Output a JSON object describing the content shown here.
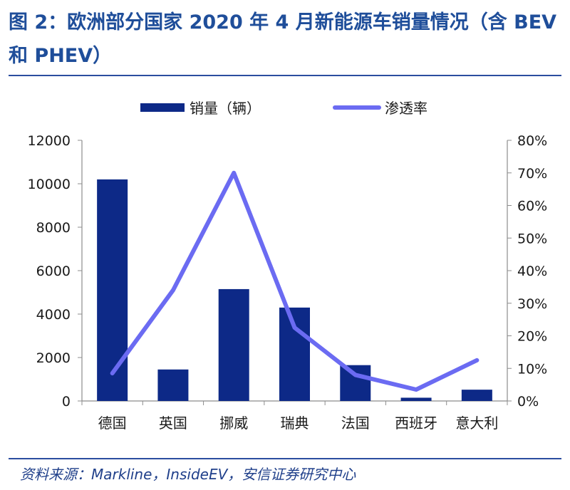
{
  "figure": {
    "title": "图 2：欧洲部分国家 2020 年 4 月新能源车销量情况（含 BEV 和 PHEV）",
    "source": "资料来源：Markline，InsideEV，安信证券研究中心"
  },
  "chart_data": {
    "type": "bar+line",
    "categories": [
      "德国",
      "英国",
      "挪威",
      "瑞典",
      "法国",
      "西班牙",
      "意大利"
    ],
    "series": [
      {
        "name": "销量（辆）",
        "type": "bar",
        "axis": "left",
        "color": "#0d2987",
        "values": [
          10200,
          1450,
          5150,
          4300,
          1650,
          150,
          520
        ]
      },
      {
        "name": "渗透率",
        "type": "line",
        "axis": "right",
        "color": "#6b6bf2",
        "values": [
          0.085,
          0.34,
          0.7,
          0.225,
          0.08,
          0.035,
          0.125
        ]
      }
    ],
    "y_left": {
      "min": 0,
      "max": 12000,
      "step": 2000,
      "ticks": [
        "0",
        "2000",
        "4000",
        "6000",
        "8000",
        "10000",
        "12000"
      ]
    },
    "y_right": {
      "min": 0,
      "max": 0.8,
      "step": 0.1,
      "ticks": [
        "0%",
        "10%",
        "20%",
        "30%",
        "40%",
        "50%",
        "60%",
        "70%",
        "80%"
      ]
    },
    "legend": [
      "销量（辆）",
      "渗透率"
    ],
    "legend_position": "top-center",
    "grid": false
  }
}
